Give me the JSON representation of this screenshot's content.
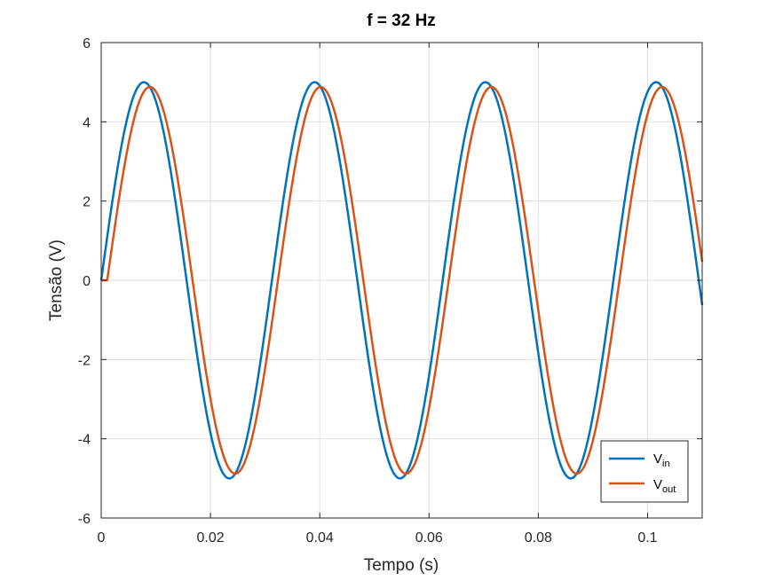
{
  "chart_data": {
    "type": "line",
    "title": "f = 32 Hz",
    "xlabel": "Tempo (s)",
    "ylabel": "Tensão (V)",
    "xlim": [
      0,
      0.11
    ],
    "ylim": [
      -6,
      6
    ],
    "xticks": [
      0,
      0.02,
      0.04,
      0.06,
      0.08,
      0.1
    ],
    "xtick_labels": [
      "0",
      "0.02",
      "0.04",
      "0.06",
      "0.08",
      "0.1"
    ],
    "yticks": [
      -6,
      -4,
      -2,
      0,
      2,
      4,
      6
    ],
    "ytick_labels": [
      "-6",
      "-4",
      "-2",
      "0",
      "2",
      "4",
      "6"
    ],
    "grid": true,
    "legend_position": "bottom-right",
    "frequency_hz": 32,
    "series": [
      {
        "name": "V_in",
        "label_main": "V",
        "label_sub": "in",
        "color": "#0072BD",
        "amplitude": 5.0,
        "phase_delay_s": 0.0
      },
      {
        "name": "V_out",
        "label_main": "V",
        "label_sub": "out",
        "color": "#D95319",
        "amplitude": 4.88,
        "phase_delay_s": 0.0011
      }
    ]
  }
}
